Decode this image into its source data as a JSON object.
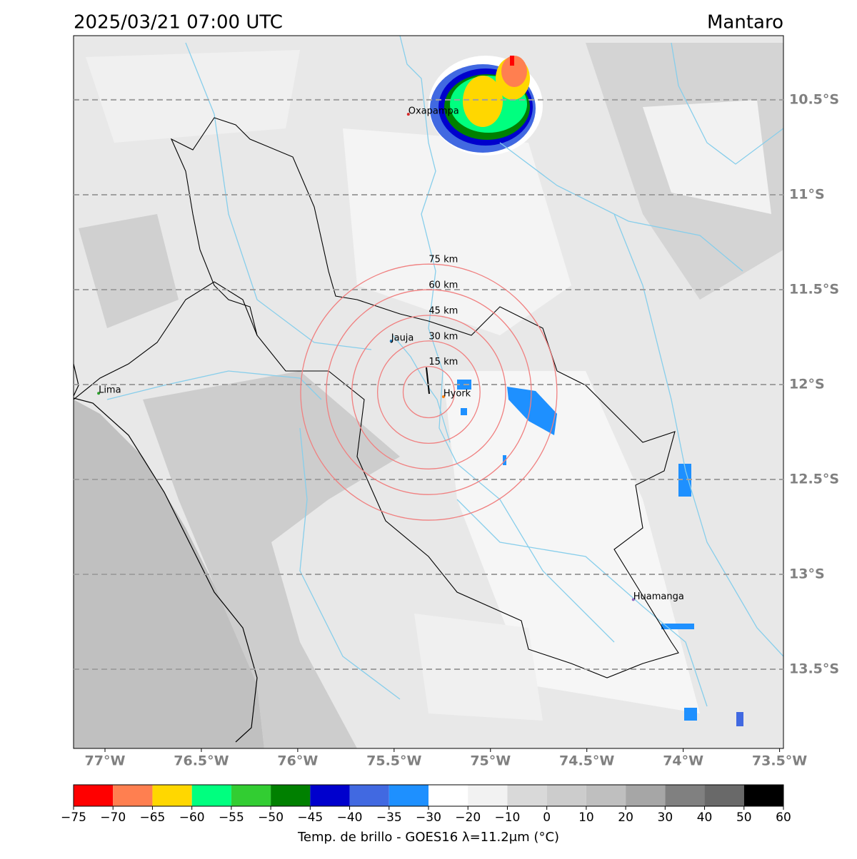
{
  "title": "2025/03/21 07:00 UTC",
  "region": "Mantaro",
  "map": {
    "xlim": [
      -77.163,
      -73.48
    ],
    "ylim": [
      -13.917,
      -10.162
    ],
    "xticks": [
      {
        "value": -77,
        "label": "77°W"
      },
      {
        "value": -76.5,
        "label": "76.5°W"
      },
      {
        "value": -76,
        "label": "76°W"
      },
      {
        "value": -75.5,
        "label": "75.5°W"
      },
      {
        "value": -75,
        "label": "75°W"
      },
      {
        "value": -74.5,
        "label": "74.5°W"
      },
      {
        "value": -74,
        "label": "74°W"
      },
      {
        "value": -73.5,
        "label": "73.5°W"
      }
    ],
    "yticks": [
      {
        "value": -10.5,
        "label": "10.5°S"
      },
      {
        "value": -11,
        "label": "11°S"
      },
      {
        "value": -11.5,
        "label": "11.5°S"
      },
      {
        "value": -12,
        "label": "12°S"
      },
      {
        "value": -12.5,
        "label": "12.5°S"
      },
      {
        "value": -13,
        "label": "13°S"
      },
      {
        "value": -13.5,
        "label": "13.5°S"
      }
    ],
    "grid": true,
    "cities": [
      {
        "name": "Oxapampa",
        "lon": -75.426,
        "lat": -10.576,
        "color": "#d62728"
      },
      {
        "name": "Jauja",
        "lon": -75.515,
        "lat": -11.771,
        "color": "#1f77b4"
      },
      {
        "name": "Hyork",
        "lon": -75.244,
        "lat": -12.064,
        "color": "#ff7f0e"
      },
      {
        "name": "Lima",
        "lon": -77.033,
        "lat": -12.046,
        "color": "#2ca02c"
      },
      {
        "name": "Huamanga",
        "lon": -74.259,
        "lat": -13.133,
        "color": "#9467bd"
      }
    ],
    "rings": {
      "center": [
        -75.32,
        -12.04
      ],
      "color": "#f08080",
      "radii": [
        {
          "value": 15,
          "label": "15 km"
        },
        {
          "value": 30,
          "label": "30 km"
        },
        {
          "value": 45,
          "label": "45 km"
        },
        {
          "value": 60,
          "label": "60 km"
        },
        {
          "value": 75,
          "label": "75 km"
        }
      ]
    }
  },
  "colorbar": {
    "label": "Temp. de brillo - GOES16 λ=11.2μm (°C)",
    "bounds": [
      {
        "value": -75,
        "label": "−75"
      },
      {
        "value": -70,
        "label": "−70"
      },
      {
        "value": -65,
        "label": "−65"
      },
      {
        "value": -60,
        "label": "−60"
      },
      {
        "value": -55,
        "label": "−55"
      },
      {
        "value": -50,
        "label": "−50"
      },
      {
        "value": -45,
        "label": "−45"
      },
      {
        "value": -40,
        "label": "−40"
      },
      {
        "value": -35,
        "label": "−35"
      },
      {
        "value": -30,
        "label": "−30"
      },
      {
        "value": -20,
        "label": "−20"
      },
      {
        "value": -10,
        "label": "−10"
      },
      0,
      10,
      20,
      30,
      40,
      50,
      60
    ],
    "colors": [
      "#ff0000",
      "#ff7f50",
      "#ffd700",
      "#00ff7f",
      "#32cd32",
      "#008000",
      "#0000cd",
      "#4169e1",
      "#1e90ff",
      "#ffffff",
      "#f2f2f2",
      "#d9d9d9",
      "#cccccc",
      "#bfbfbf",
      "#a6a6a6",
      "#808080",
      "#696969",
      "#000000"
    ]
  }
}
